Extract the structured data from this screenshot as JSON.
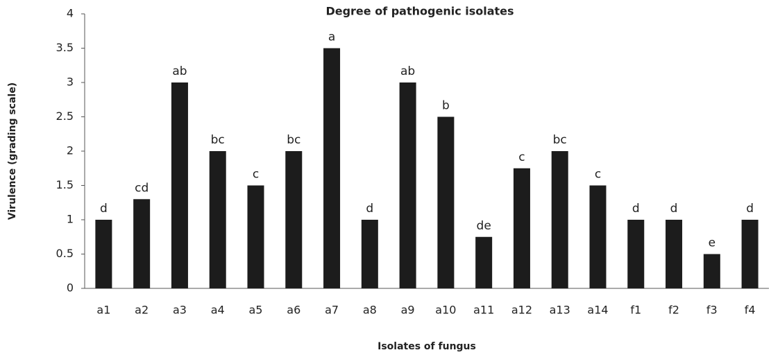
{
  "chart_data": {
    "type": "bar",
    "title": "Degree of pathogenic isolates",
    "x_label": "Isolates of fungus",
    "y_label": "Virulence (grading scale)",
    "categories": [
      "a1",
      "a2",
      "a3",
      "a4",
      "a5",
      "a6",
      "a7",
      "a8",
      "a9",
      "a10",
      "a11",
      "a12",
      "a13",
      "a14",
      "f1",
      "f2",
      "f3",
      "f4"
    ],
    "values": [
      1,
      1.3,
      3,
      2,
      1.5,
      2,
      3.5,
      1,
      3,
      2.5,
      0.75,
      1.75,
      2,
      1.5,
      1,
      1,
      0.5,
      1
    ],
    "annotations": [
      "d",
      "cd",
      "ab",
      "bc",
      "c",
      "bc",
      "a",
      "d",
      "ab",
      "b",
      "de",
      "c",
      "bc",
      "c",
      "d",
      "d",
      "e",
      "d"
    ],
    "color": "#1c1c1c",
    "ylim": [
      0,
      4
    ],
    "yticks": [
      0,
      0.5,
      1,
      1.5,
      2,
      2.5,
      3,
      3.5,
      4
    ],
    "grid": false
  }
}
